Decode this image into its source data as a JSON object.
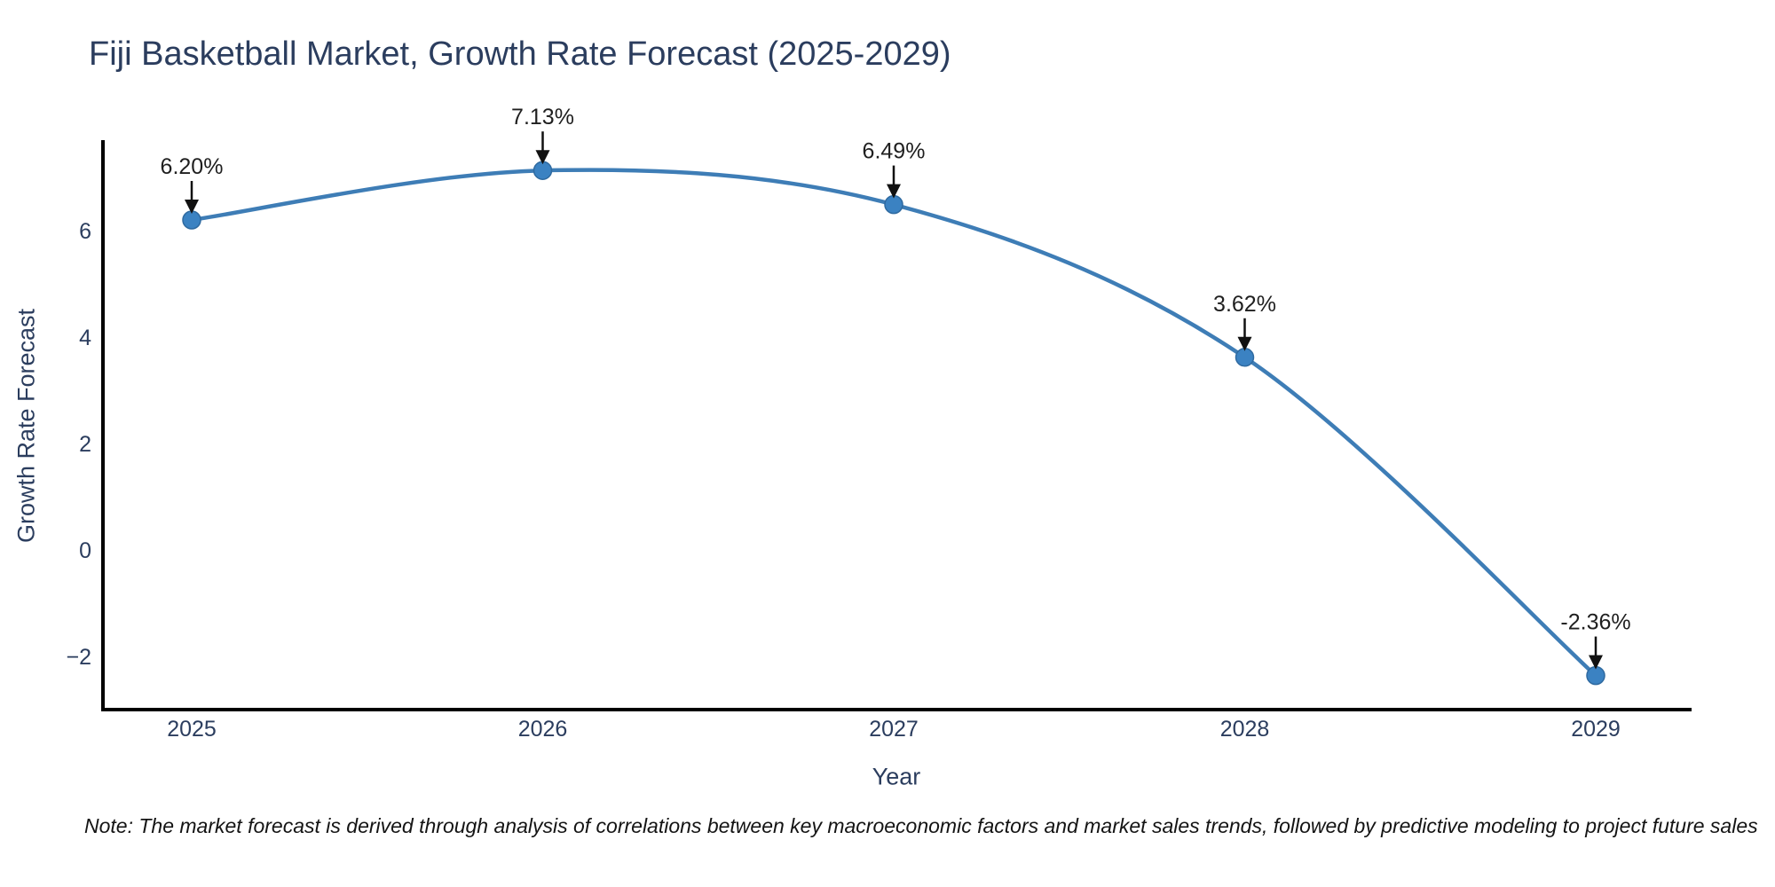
{
  "note": "Note: The market forecast is derived through analysis of correlations between key macroeconomic factors and market sales trends, followed by predictive modeling to project future sales",
  "chart_data": {
    "type": "line",
    "title": "Fiji Basketball Market, Growth Rate Forecast (2025-2029)",
    "xlabel": "Year",
    "ylabel": "Growth Rate Forecast",
    "x": [
      "2025",
      "2026",
      "2027",
      "2028",
      "2029"
    ],
    "values": [
      6.2,
      7.13,
      6.49,
      3.62,
      -2.36
    ],
    "point_labels": [
      "6.20%",
      "7.13%",
      "6.49%",
      "3.62%",
      "-2.36%"
    ],
    "yticks": [
      -2,
      0,
      2,
      4,
      6
    ],
    "ylim": [
      -3.0,
      7.7
    ],
    "line_shape": "spline",
    "grid": false,
    "legend": "none",
    "annotation_style": "label-with-down-arrow",
    "colors": {
      "line": "#3e7db6",
      "marker": "#3b82c2",
      "marker_edge": "#2f6aa0",
      "axis": "#000000",
      "tick_text": "#2b3d5e",
      "title_text": "#2b3d5e",
      "annotation": "#1f1f1f"
    }
  }
}
